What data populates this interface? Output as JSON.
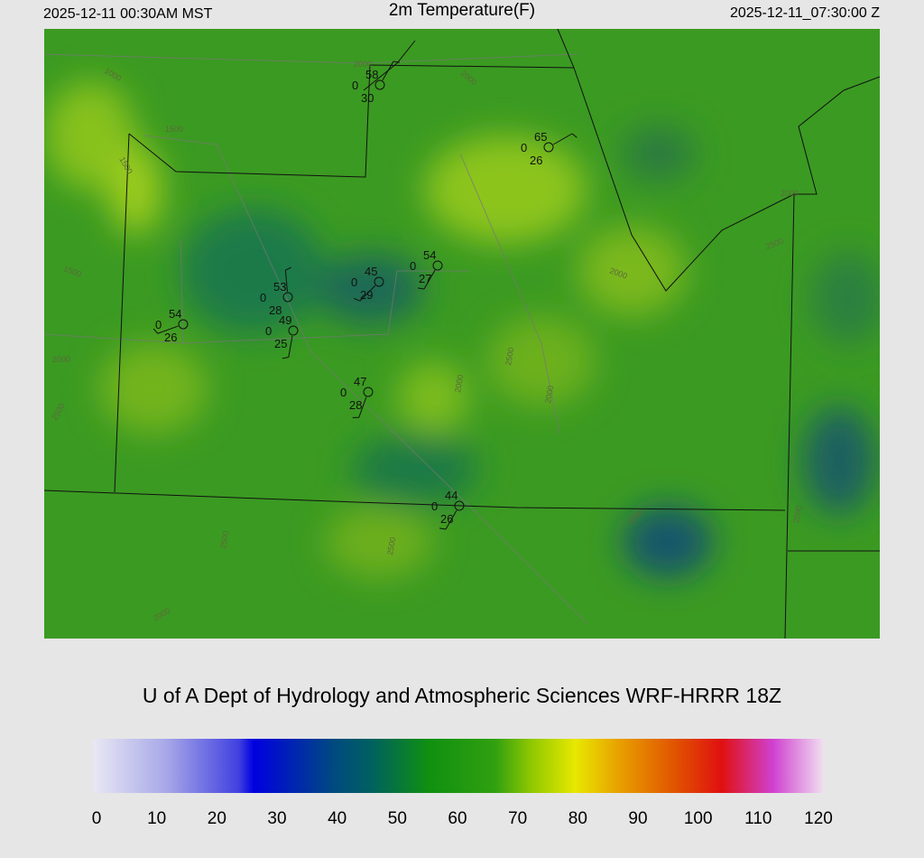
{
  "header": {
    "local_time": "2025-12-11 00:30AM MST",
    "title": "2m Temperature(F)",
    "utc_time": "2025-12-11_07:30:00 Z"
  },
  "stations": [
    {
      "temperature": 58,
      "code": "0",
      "dewpoint": 30
    },
    {
      "temperature": 65,
      "code": "0",
      "dewpoint": 26
    },
    {
      "temperature": 54,
      "code": "0",
      "dewpoint": 27
    },
    {
      "temperature": 45,
      "code": "0",
      "dewpoint": 29
    },
    {
      "temperature": 53,
      "code": "0",
      "dewpoint": 28
    },
    {
      "temperature": 49,
      "code": "0",
      "dewpoint": 25
    },
    {
      "temperature": 54,
      "code": "0",
      "dewpoint": 26
    },
    {
      "temperature": 47,
      "code": "0",
      "dewpoint": 28
    },
    {
      "temperature": 44,
      "code": "0",
      "dewpoint": 26
    }
  ],
  "contour_labels": [
    "1000",
    "1500",
    "1500",
    "1500",
    "2000",
    "2500",
    "2000",
    "2000",
    "2000",
    "2000",
    "2500",
    "2000",
    "2500",
    "2000",
    "2500",
    "2500",
    "2000",
    "2000",
    "2000"
  ],
  "credit": "U of A Dept of Hydrology and Atmospheric Sciences WRF-HRRR 18Z",
  "colorbar": {
    "ticks": [
      0,
      10,
      20,
      30,
      40,
      50,
      60,
      70,
      80,
      90,
      100,
      110,
      120
    ]
  }
}
